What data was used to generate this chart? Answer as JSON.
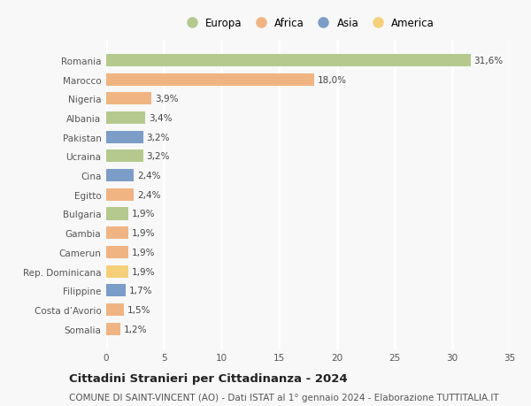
{
  "categories": [
    "Romania",
    "Marocco",
    "Nigeria",
    "Albania",
    "Pakistan",
    "Ucraina",
    "Cina",
    "Egitto",
    "Bulgaria",
    "Gambia",
    "Camerun",
    "Rep. Dominicana",
    "Filippine",
    "Costa d’Avorio",
    "Somalia"
  ],
  "values": [
    31.6,
    18.0,
    3.9,
    3.4,
    3.2,
    3.2,
    2.4,
    2.4,
    1.9,
    1.9,
    1.9,
    1.9,
    1.7,
    1.5,
    1.2
  ],
  "labels": [
    "31,6%",
    "18,0%",
    "3,9%",
    "3,4%",
    "3,2%",
    "3,2%",
    "2,4%",
    "2,4%",
    "1,9%",
    "1,9%",
    "1,9%",
    "1,9%",
    "1,7%",
    "1,5%",
    "1,2%"
  ],
  "colors": [
    "#b5c98e",
    "#f0b482",
    "#f0b482",
    "#b5c98e",
    "#7b9dc7",
    "#b5c98e",
    "#7b9dc7",
    "#f0b482",
    "#b5c98e",
    "#f0b482",
    "#f0b482",
    "#f5d07a",
    "#7b9dc7",
    "#f0b482",
    "#f0b482"
  ],
  "legend_labels": [
    "Europa",
    "Africa",
    "Asia",
    "America"
  ],
  "legend_colors": [
    "#b5c98e",
    "#f0b482",
    "#7b9dc7",
    "#f5d07a"
  ],
  "title": "Cittadini Stranieri per Cittadinanza - 2024",
  "subtitle": "COMUNE DI SAINT-VINCENT (AO) - Dati ISTAT al 1° gennaio 2024 - Elaborazione TUTTITALIA.IT",
  "xlim": [
    0,
    35
  ],
  "xticks": [
    0,
    5,
    10,
    15,
    20,
    25,
    30,
    35
  ],
  "bg_color": "#f8f8f8",
  "grid_color": "#ffffff",
  "bar_height": 0.65,
  "title_fontsize": 9.5,
  "subtitle_fontsize": 7.5,
  "label_fontsize": 7.5,
  "tick_fontsize": 7.5,
  "legend_fontsize": 8.5
}
